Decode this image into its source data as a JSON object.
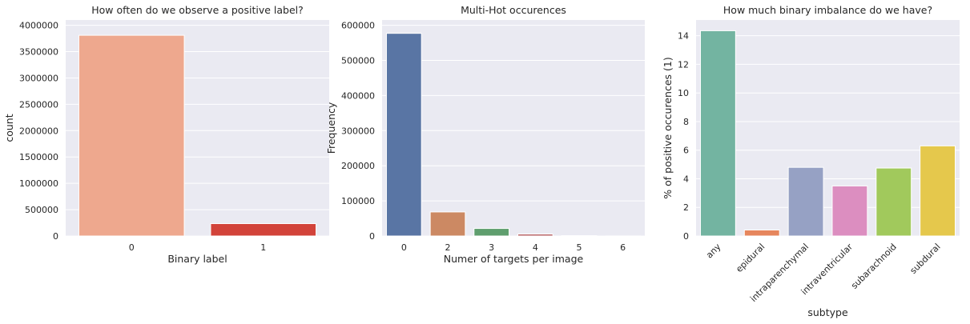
{
  "chart_data": [
    {
      "type": "bar",
      "title": "How often do we observe a positive label?",
      "xlabel": "Binary label",
      "ylabel": "count",
      "categories": [
        "0",
        "1"
      ],
      "values": [
        3810000,
        235000
      ],
      "colors": [
        "#eea88e",
        "#d2433a"
      ],
      "ylim": [
        0,
        4100000
      ],
      "yticks": [
        0,
        500000,
        1000000,
        1500000,
        2000000,
        2500000,
        3000000,
        3500000,
        4000000
      ],
      "ytick_labels": [
        "0",
        "500000",
        "1000000",
        "1500000",
        "2000000",
        "2500000",
        "3000000",
        "3500000",
        "4000000"
      ],
      "grid": "y"
    },
    {
      "type": "bar",
      "title": "Multi-Hot occurences",
      "xlabel": "Numer of targets per image",
      "ylabel": "Frequency",
      "categories": [
        "0",
        "2",
        "3",
        "4",
        "5",
        "6"
      ],
      "values": [
        577000,
        68500,
        21500,
        5500,
        1000,
        150
      ],
      "colors": [
        "#5975a4",
        "#cc8963",
        "#5f9e6e",
        "#b55d60",
        "#857aab",
        "#8d7866"
      ],
      "ylim": [
        0,
        615000
      ],
      "yticks": [
        0,
        100000,
        200000,
        300000,
        400000,
        500000,
        600000
      ],
      "ytick_labels": [
        "0",
        "100000",
        "200000",
        "300000",
        "400000",
        "500000",
        "600000"
      ],
      "grid": "y"
    },
    {
      "type": "bar",
      "title": "How much binary imbalance do we have?",
      "xlabel": "subtype",
      "ylabel": "% of positive occurences (1)",
      "categories": [
        "any",
        "epidural",
        "intraparenchymal",
        "intraventricular",
        "subarachnoid",
        "subdural"
      ],
      "values": [
        14.35,
        0.42,
        4.8,
        3.5,
        4.75,
        6.3
      ],
      "colors": [
        "#73b4a1",
        "#e6865d",
        "#96a1c4",
        "#dc8ec0",
        "#a1c95c",
        "#e5c84c"
      ],
      "ylim": [
        0,
        15.1
      ],
      "yticks": [
        0,
        2,
        4,
        6,
        8,
        10,
        12,
        14
      ],
      "ytick_labels": [
        "0",
        "2",
        "4",
        "6",
        "8",
        "10",
        "12",
        "14"
      ],
      "grid": "y"
    }
  ]
}
